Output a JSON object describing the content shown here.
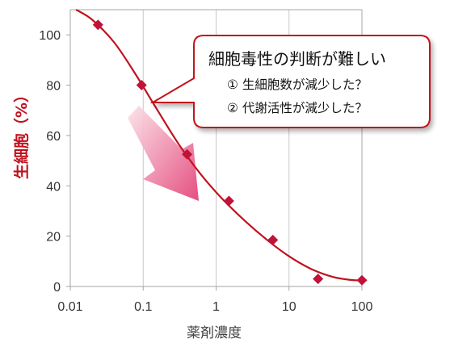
{
  "chart_data": {
    "type": "scatter",
    "x_scale": "log",
    "xlabel": "薬剤濃度",
    "ylabel": "生細胞（%）",
    "xlim": [
      0.01,
      100
    ],
    "ylim": [
      0,
      110
    ],
    "x_ticks": [
      0.01,
      0.1,
      1,
      10,
      100
    ],
    "x_tick_labels": [
      "0.01",
      "0.1",
      "1",
      "10",
      "100"
    ],
    "y_ticks": [
      0,
      20,
      40,
      60,
      80,
      100
    ],
    "y_tick_labels": [
      "0",
      "20",
      "40",
      "60",
      "80",
      "100"
    ],
    "grid": "vertical",
    "points": [
      {
        "x": 0.024,
        "y": 104
      },
      {
        "x": 0.095,
        "y": 80
      },
      {
        "x": 0.4,
        "y": 52.5
      },
      {
        "x": 1.5,
        "y": 34
      },
      {
        "x": 6.0,
        "y": 18.5
      },
      {
        "x": 25,
        "y": 3
      },
      {
        "x": 100,
        "y": 2.5
      }
    ],
    "fit_curve": [
      {
        "x": 0.012,
        "y": 110
      },
      {
        "x": 0.02,
        "y": 106
      },
      {
        "x": 0.04,
        "y": 97
      },
      {
        "x": 0.08,
        "y": 84
      },
      {
        "x": 0.15,
        "y": 71
      },
      {
        "x": 0.3,
        "y": 57
      },
      {
        "x": 0.6,
        "y": 45
      },
      {
        "x": 1.2,
        "y": 35
      },
      {
        "x": 2.5,
        "y": 26
      },
      {
        "x": 5,
        "y": 18.5
      },
      {
        "x": 10,
        "y": 12
      },
      {
        "x": 20,
        "y": 7
      },
      {
        "x": 40,
        "y": 3.8
      },
      {
        "x": 70,
        "y": 2.6
      },
      {
        "x": 95,
        "y": 2.4
      }
    ],
    "series_color": "#c0121e",
    "marker_color": "#c1123a"
  },
  "callout": {
    "title": "細胞毒性の判断が難しい",
    "items": [
      "① 生細胞数が減少した？",
      "② 代謝活性が減少した？"
    ],
    "border_color": "#c0121e"
  },
  "arrow": {
    "gradient_start": "#fbe3ea",
    "gradient_end": "#e4467a"
  }
}
